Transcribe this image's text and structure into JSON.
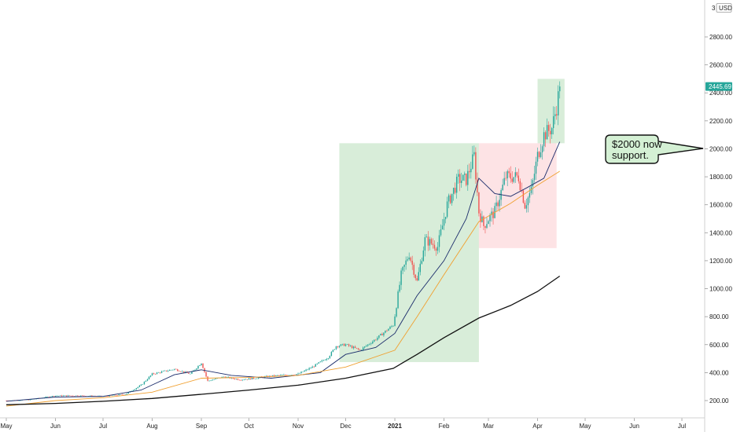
{
  "chart_data": {
    "type": "candlestick",
    "currency_label": "USD",
    "y_axis": {
      "ticks": [
        200,
        400,
        600,
        800,
        1000,
        1200,
        1400,
        1600,
        1800,
        2000,
        2200,
        2400,
        2600,
        2800
      ],
      "tick_labels": [
        "200.00",
        "400.00",
        "600.00",
        "800.00",
        "1000.00",
        "1200.00",
        "1400.00",
        "1600.00",
        "1800.00",
        "2000.00",
        "2200.00",
        "2400.00",
        "2600.00",
        "2800.00"
      ],
      "top_label": "3",
      "range": [
        100,
        3000
      ]
    },
    "x_axis": {
      "ticks": [
        {
          "label": "May",
          "date": "2020-05-01",
          "bold": false
        },
        {
          "label": "Jun",
          "date": "2020-06-01",
          "bold": false
        },
        {
          "label": "Jul",
          "date": "2020-07-01",
          "bold": false
        },
        {
          "label": "Aug",
          "date": "2020-08-01",
          "bold": false
        },
        {
          "label": "Sep",
          "date": "2020-09-01",
          "bold": false
        },
        {
          "label": "Oct",
          "date": "2020-10-01",
          "bold": false
        },
        {
          "label": "Nov",
          "date": "2020-11-01",
          "bold": false
        },
        {
          "label": "Dec",
          "date": "2020-12-01",
          "bold": false
        },
        {
          "label": "2021",
          "date": "2021-01-01",
          "bold": true
        },
        {
          "label": "Feb",
          "date": "2021-02-01",
          "bold": false
        },
        {
          "label": "Mar",
          "date": "2021-03-01",
          "bold": false
        },
        {
          "label": "Apr",
          "date": "2021-04-01",
          "bold": false
        },
        {
          "label": "May",
          "date": "2021-05-01",
          "bold": false
        },
        {
          "label": "Jun",
          "date": "2021-06-01",
          "bold": false
        },
        {
          "label": "Jul",
          "date": "2021-07-01",
          "bold": false
        }
      ],
      "range": [
        "2020-05-01",
        "2021-07-10"
      ]
    },
    "price_path": [
      [
        "2020-05-01",
        200
      ],
      [
        "2020-05-15",
        205
      ],
      [
        "2020-06-01",
        235
      ],
      [
        "2020-06-15",
        235
      ],
      [
        "2020-07-01",
        230
      ],
      [
        "2020-07-15",
        245
      ],
      [
        "2020-07-25",
        310
      ],
      [
        "2020-08-01",
        390
      ],
      [
        "2020-08-15",
        425
      ],
      [
        "2020-08-25",
        390
      ],
      [
        "2020-09-01",
        470
      ],
      [
        "2020-09-05",
        340
      ],
      [
        "2020-09-15",
        370
      ],
      [
        "2020-09-25",
        350
      ],
      [
        "2020-10-01",
        355
      ],
      [
        "2020-10-15",
        375
      ],
      [
        "2020-11-01",
        390
      ],
      [
        "2020-11-10",
        440
      ],
      [
        "2020-11-20",
        510
      ],
      [
        "2020-11-25",
        590
      ],
      [
        "2020-12-01",
        600
      ],
      [
        "2020-12-10",
        560
      ],
      [
        "2020-12-20",
        640
      ],
      [
        "2020-12-31",
        740
      ],
      [
        "2021-01-05",
        1100
      ],
      [
        "2021-01-10",
        1250
      ],
      [
        "2021-01-15",
        1050
      ],
      [
        "2021-01-20",
        1350
      ],
      [
        "2021-01-28",
        1300
      ],
      [
        "2021-02-03",
        1600
      ],
      [
        "2021-02-10",
        1780
      ],
      [
        "2021-02-15",
        1780
      ],
      [
        "2021-02-20",
        1950
      ],
      [
        "2021-02-23",
        1550
      ],
      [
        "2021-02-26",
        1450
      ],
      [
        "2021-03-01",
        1500
      ],
      [
        "2021-03-05",
        1550
      ],
      [
        "2021-03-12",
        1800
      ],
      [
        "2021-03-20",
        1800
      ],
      [
        "2021-03-24",
        1600
      ],
      [
        "2021-03-28",
        1700
      ],
      [
        "2021-04-01",
        1950
      ],
      [
        "2021-04-05",
        2100
      ],
      [
        "2021-04-10",
        2150
      ],
      [
        "2021-04-13",
        2300
      ],
      [
        "2021-04-15",
        2445
      ]
    ],
    "series": [
      {
        "name": "",
        "color": "#1a2b6a",
        "width": 0.9,
        "points": [
          [
            "2020-05-01",
            195
          ],
          [
            "2020-06-01",
            225
          ],
          [
            "2020-07-01",
            230
          ],
          [
            "2020-07-25",
            275
          ],
          [
            "2020-08-15",
            385
          ],
          [
            "2020-09-01",
            420
          ],
          [
            "2020-09-20",
            380
          ],
          [
            "2020-10-15",
            360
          ],
          [
            "2020-11-15",
            400
          ],
          [
            "2020-12-01",
            530
          ],
          [
            "2020-12-20",
            580
          ],
          [
            "2021-01-01",
            680
          ],
          [
            "2021-01-15",
            950
          ],
          [
            "2021-02-01",
            1200
          ],
          [
            "2021-02-15",
            1500
          ],
          [
            "2021-02-23",
            1790
          ],
          [
            "2021-03-05",
            1680
          ],
          [
            "2021-03-15",
            1660
          ],
          [
            "2021-03-25",
            1720
          ],
          [
            "2021-04-05",
            1790
          ],
          [
            "2021-04-15",
            2050
          ]
        ]
      },
      {
        "name": "",
        "color": "#f0a030",
        "width": 0.9,
        "points": [
          [
            "2020-05-01",
            160
          ],
          [
            "2020-06-01",
            200
          ],
          [
            "2020-07-01",
            220
          ],
          [
            "2020-08-01",
            260
          ],
          [
            "2020-09-01",
            360
          ],
          [
            "2020-10-01",
            365
          ],
          [
            "2020-11-01",
            380
          ],
          [
            "2020-12-01",
            440
          ],
          [
            "2021-01-01",
            560
          ],
          [
            "2021-01-15",
            800
          ],
          [
            "2021-02-01",
            1100
          ],
          [
            "2021-02-23",
            1480
          ],
          [
            "2021-03-15",
            1610
          ],
          [
            "2021-04-01",
            1740
          ],
          [
            "2021-04-15",
            1840
          ]
        ]
      },
      {
        "name": "",
        "color": "#111111",
        "width": 1.3,
        "points": [
          [
            "2020-05-01",
            170
          ],
          [
            "2020-06-01",
            180
          ],
          [
            "2020-07-01",
            195
          ],
          [
            "2020-08-01",
            215
          ],
          [
            "2020-09-01",
            245
          ],
          [
            "2020-10-01",
            275
          ],
          [
            "2020-11-01",
            310
          ],
          [
            "2020-12-01",
            360
          ],
          [
            "2020-12-31",
            430
          ],
          [
            "2021-01-15",
            530
          ],
          [
            "2021-02-01",
            650
          ],
          [
            "2021-02-23",
            790
          ],
          [
            "2021-03-15",
            880
          ],
          [
            "2021-04-01",
            980
          ],
          [
            "2021-04-15",
            1090
          ]
        ]
      }
    ],
    "zones": [
      {
        "x0": "2020-11-27",
        "x1": "2021-02-23",
        "y0": 475,
        "y1": 2040,
        "color": "rgba(76,175,80,0.22)"
      },
      {
        "x0": "2021-02-23",
        "x1": "2021-04-13",
        "y0": 1290,
        "y1": 2040,
        "color": "rgba(242,54,69,0.14)"
      },
      {
        "x0": "2021-04-01",
        "x1": "2021-04-18",
        "y0": 2040,
        "y1": 2500,
        "color": "rgba(76,175,80,0.22)"
      }
    ],
    "last_price": {
      "label": "2445.69",
      "value": 2445.69,
      "color": "#26a69a"
    },
    "candle_colors": {
      "up": "#26a69a",
      "down": "#ef5350"
    },
    "annotation": {
      "lines": [
        "$2000 now",
        "support."
      ],
      "price": 2000,
      "background": "#d4f0d4",
      "border": "#111111"
    }
  }
}
